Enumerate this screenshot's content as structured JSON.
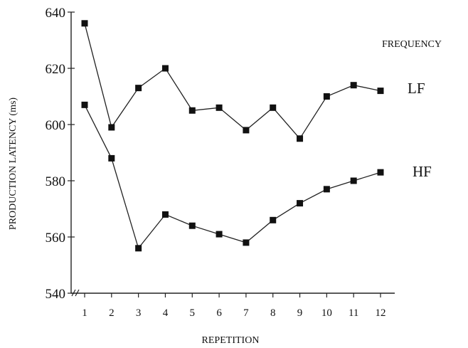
{
  "chart_data": {
    "type": "line",
    "title": "",
    "xlabel": "REPETITION",
    "ylabel": "PRODUCTION LATENCY (ms)",
    "x": [
      1,
      2,
      3,
      4,
      5,
      6,
      7,
      8,
      9,
      10,
      11,
      12
    ],
    "x_tick_labels": [
      "1",
      "2",
      "3",
      "4",
      "5",
      "6",
      "7",
      "8",
      "9",
      "10",
      "11",
      "12"
    ],
    "y_ticks": [
      540,
      560,
      580,
      600,
      620,
      640
    ],
    "y_tick_labels": [
      "540",
      "560",
      "580",
      "600",
      "620",
      "640"
    ],
    "ylim": [
      540,
      640
    ],
    "xlim": [
      1,
      12
    ],
    "grid": false,
    "axis_break": true,
    "legend_title": "FREQUENCY",
    "series": [
      {
        "name": "LF",
        "values": [
          636,
          599,
          613,
          620,
          605,
          606,
          598,
          606,
          595,
          610,
          614,
          612
        ]
      },
      {
        "name": "HF",
        "values": [
          607,
          588,
          556,
          568,
          564,
          561,
          558,
          566,
          572,
          577,
          580,
          583
        ]
      }
    ],
    "marker": "square",
    "color": "#111111"
  }
}
